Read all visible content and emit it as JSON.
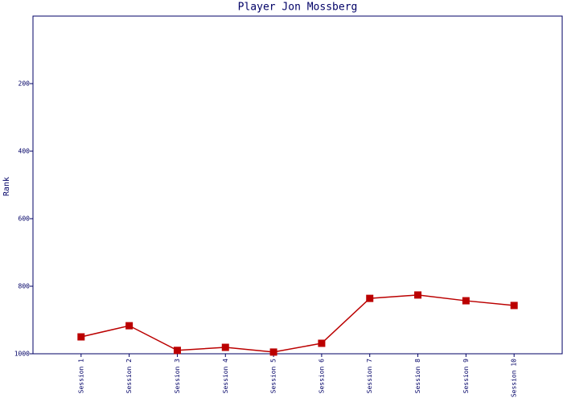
{
  "chart_data": {
    "type": "line",
    "title": "Player Jon Mossberg",
    "y_label": "Rank",
    "categories": [
      "Session 1",
      "Session 2",
      "Session 3",
      "Session 4",
      "Session 5",
      "Session 6",
      "Session 7",
      "Session 8",
      "Session 9",
      "Session 10"
    ],
    "series": [
      {
        "name": "Rank",
        "color": "#bb0000",
        "values": [
          950,
          917,
          990,
          981,
          995,
          969,
          836,
          826,
          843,
          857
        ]
      }
    ],
    "ylim": [
      1000,
      0
    ],
    "yticks": [
      200,
      400,
      600,
      800,
      1000
    ],
    "legend": false,
    "grid": false
  }
}
